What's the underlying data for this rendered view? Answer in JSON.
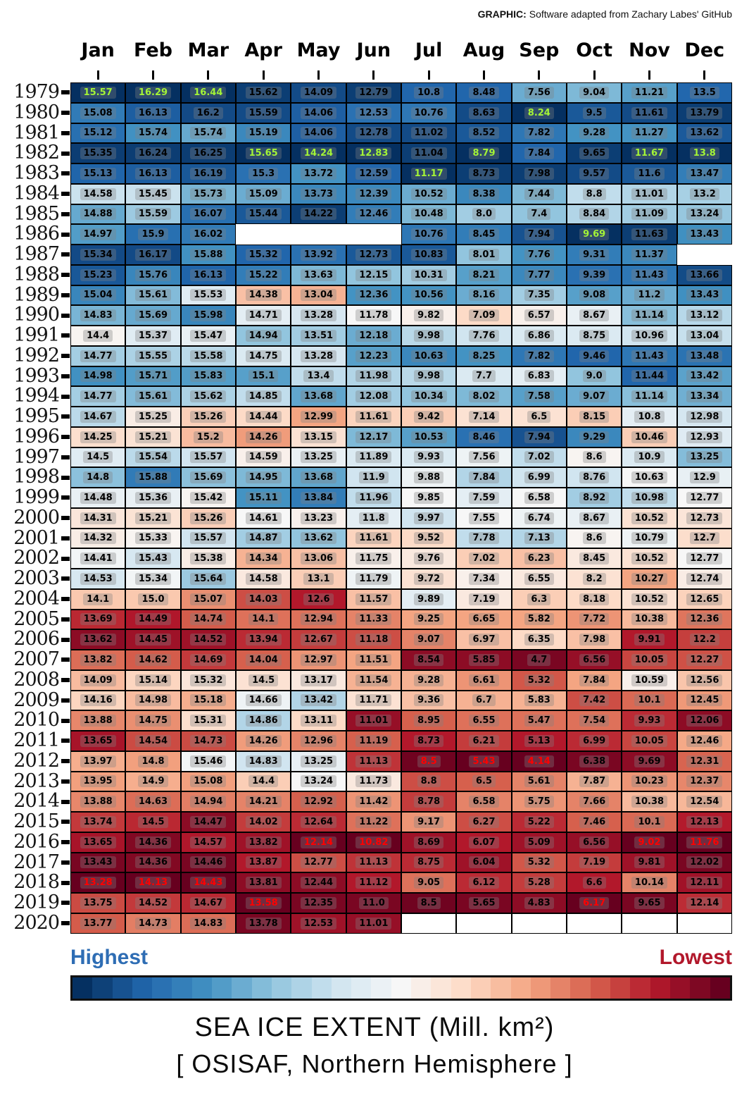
{
  "credit": {
    "prefix": "GRAPHIC:",
    "text": " Software adapted from Zachary Labes' GitHub"
  },
  "legend": {
    "highest_label": "Highest",
    "lowest_label": "Lowest",
    "highest_color": "#2e6db4",
    "lowest_color": "#b2182b",
    "segments": 33
  },
  "title": {
    "line1": "SEA ICE EXTENT (Mill. km²)",
    "line2": "[ OSISAF, Northern Hemisphere ]"
  },
  "chart_data": {
    "type": "heatmap",
    "title": "SEA ICE EXTENT (Mill. km²)",
    "subtitle": "[ OSISAF, Northern Hemisphere ]",
    "unit": "Mill. km²",
    "columns": [
      "Jan",
      "Feb",
      "Mar",
      "Apr",
      "May",
      "Jun",
      "Jul",
      "Aug",
      "Sep",
      "Oct",
      "Nov",
      "Dec"
    ],
    "years": [
      "1979",
      "1980",
      "1981",
      "1982",
      "1983",
      "1984",
      "1985",
      "1986",
      "1987",
      "1988",
      "1989",
      "1990",
      "1991",
      "1992",
      "1993",
      "1994",
      "1995",
      "1996",
      "1997",
      "1998",
      "1999",
      "2000",
      "2001",
      "2002",
      "2003",
      "2004",
      "2005",
      "2006",
      "2007",
      "2008",
      "2009",
      "2010",
      "2011",
      "2012",
      "2013",
      "2014",
      "2015",
      "2016",
      "2017",
      "2018",
      "2019",
      "2020"
    ],
    "values": [
      [
        15.57,
        16.29,
        16.44,
        15.62,
        14.09,
        12.79,
        10.8,
        8.48,
        7.56,
        9.04,
        11.21,
        13.5
      ],
      [
        15.08,
        16.13,
        16.2,
        15.59,
        14.06,
        12.53,
        10.76,
        8.63,
        8.24,
        9.5,
        11.61,
        13.79
      ],
      [
        15.12,
        15.74,
        15.74,
        15.19,
        14.06,
        12.78,
        11.02,
        8.52,
        7.82,
        9.28,
        11.27,
        13.62
      ],
      [
        15.35,
        16.24,
        16.25,
        15.65,
        14.24,
        12.83,
        11.04,
        8.79,
        7.84,
        9.65,
        11.67,
        13.8
      ],
      [
        15.13,
        16.13,
        16.19,
        15.3,
        13.72,
        12.59,
        11.17,
        8.73,
        7.98,
        9.57,
        11.6,
        13.47
      ],
      [
        14.58,
        15.45,
        15.73,
        15.09,
        13.73,
        12.39,
        10.52,
        8.38,
        7.44,
        8.8,
        11.01,
        13.2
      ],
      [
        14.88,
        15.59,
        16.07,
        15.44,
        14.22,
        12.46,
        10.48,
        8.0,
        7.4,
        8.84,
        11.09,
        13.24
      ],
      [
        14.97,
        15.9,
        16.02,
        null,
        null,
        null,
        10.76,
        8.45,
        7.94,
        9.69,
        11.63,
        13.43
      ],
      [
        15.34,
        16.17,
        15.88,
        15.32,
        13.92,
        12.73,
        10.83,
        8.01,
        7.76,
        9.31,
        11.37,
        null
      ],
      [
        15.23,
        15.76,
        16.13,
        15.22,
        13.63,
        12.15,
        10.31,
        8.21,
        7.77,
        9.39,
        11.43,
        13.66
      ],
      [
        15.04,
        15.61,
        15.53,
        14.38,
        13.04,
        12.36,
        10.56,
        8.16,
        7.35,
        9.08,
        11.2,
        13.43
      ],
      [
        14.83,
        15.69,
        15.98,
        14.71,
        13.28,
        11.78,
        9.82,
        7.09,
        6.57,
        8.67,
        11.14,
        13.12
      ],
      [
        14.4,
        15.37,
        15.47,
        14.94,
        13.51,
        12.18,
        9.98,
        7.76,
        6.86,
        8.75,
        10.96,
        13.04
      ],
      [
        14.77,
        15.55,
        15.58,
        14.75,
        13.28,
        12.23,
        10.63,
        8.25,
        7.82,
        9.46,
        11.43,
        13.48
      ],
      [
        14.98,
        15.71,
        15.83,
        15.1,
        13.4,
        11.98,
        9.98,
        7.7,
        6.83,
        9.0,
        11.44,
        13.42
      ],
      [
        14.77,
        15.61,
        15.62,
        14.85,
        13.68,
        12.08,
        10.34,
        8.02,
        7.58,
        9.07,
        11.14,
        13.34
      ],
      [
        14.67,
        15.25,
        15.26,
        14.44,
        12.99,
        11.61,
        9.42,
        7.14,
        6.5,
        8.15,
        10.8,
        12.98
      ],
      [
        14.25,
        15.21,
        15.2,
        14.26,
        13.15,
        12.17,
        10.53,
        8.46,
        7.94,
        9.29,
        10.46,
        12.93
      ],
      [
        14.5,
        15.54,
        15.57,
        14.59,
        13.25,
        11.89,
        9.93,
        7.56,
        7.02,
        8.6,
        10.9,
        13.25
      ],
      [
        14.8,
        15.88,
        15.69,
        14.95,
        13.68,
        11.9,
        9.88,
        7.84,
        6.99,
        8.76,
        10.63,
        12.9
      ],
      [
        14.48,
        15.36,
        15.42,
        15.11,
        13.84,
        11.96,
        9.85,
        7.59,
        6.58,
        8.92,
        10.98,
        12.77
      ],
      [
        14.31,
        15.21,
        15.26,
        14.61,
        13.23,
        11.8,
        9.97,
        7.55,
        6.74,
        8.67,
        10.52,
        12.73
      ],
      [
        14.32,
        15.33,
        15.57,
        14.87,
        13.62,
        11.61,
        9.52,
        7.78,
        7.13,
        8.6,
        10.79,
        12.7
      ],
      [
        14.41,
        15.43,
        15.38,
        14.34,
        13.06,
        11.75,
        9.76,
        7.02,
        6.23,
        8.45,
        10.52,
        12.77
      ],
      [
        14.53,
        15.34,
        15.64,
        14.58,
        13.1,
        11.79,
        9.72,
        7.34,
        6.55,
        8.2,
        10.27,
        12.74
      ],
      [
        14.1,
        15.0,
        15.07,
        14.03,
        12.6,
        11.57,
        9.89,
        7.19,
        6.3,
        8.18,
        10.52,
        12.65
      ],
      [
        13.69,
        14.49,
        14.74,
        14.1,
        12.94,
        11.33,
        9.25,
        6.65,
        5.82,
        7.72,
        10.38,
        12.36
      ],
      [
        13.62,
        14.45,
        14.52,
        13.94,
        12.67,
        11.18,
        9.07,
        6.97,
        6.35,
        7.98,
        9.91,
        12.2
      ],
      [
        13.82,
        14.62,
        14.69,
        14.04,
        12.97,
        11.51,
        8.54,
        5.85,
        4.7,
        6.56,
        10.05,
        12.27
      ],
      [
        14.09,
        15.14,
        15.32,
        14.5,
        13.17,
        11.54,
        9.28,
        6.61,
        5.32,
        7.84,
        10.59,
        12.56
      ],
      [
        14.16,
        14.98,
        15.18,
        14.66,
        13.42,
        11.71,
        9.36,
        6.7,
        5.83,
        7.42,
        10.1,
        12.45
      ],
      [
        13.88,
        14.75,
        15.31,
        14.86,
        13.11,
        11.01,
        8.95,
        6.55,
        5.47,
        7.54,
        9.93,
        12.06
      ],
      [
        13.65,
        14.54,
        14.73,
        14.26,
        12.96,
        11.19,
        8.73,
        6.21,
        5.13,
        6.99,
        10.05,
        12.46
      ],
      [
        13.97,
        14.8,
        15.46,
        14.83,
        13.25,
        11.13,
        8.5,
        5.43,
        4.14,
        6.38,
        9.69,
        12.31
      ],
      [
        13.95,
        14.9,
        15.08,
        14.4,
        13.24,
        11.73,
        8.8,
        6.5,
        5.61,
        7.87,
        10.23,
        12.37
      ],
      [
        13.88,
        14.63,
        14.94,
        14.21,
        12.92,
        11.42,
        8.78,
        6.58,
        5.75,
        7.66,
        10.38,
        12.54
      ],
      [
        13.74,
        14.5,
        14.47,
        14.02,
        12.64,
        11.22,
        9.17,
        6.27,
        5.22,
        7.46,
        10.1,
        12.13
      ],
      [
        13.65,
        14.36,
        14.57,
        13.82,
        12.14,
        10.82,
        8.69,
        6.07,
        5.09,
        6.56,
        9.02,
        11.76
      ],
      [
        13.43,
        14.36,
        14.46,
        13.87,
        12.77,
        11.13,
        8.75,
        6.04,
        5.32,
        7.19,
        9.81,
        12.02
      ],
      [
        13.28,
        14.13,
        14.43,
        13.81,
        12.44,
        11.12,
        9.05,
        6.12,
        5.28,
        6.6,
        10.14,
        12.11
      ],
      [
        13.75,
        14.52,
        14.67,
        13.58,
        12.35,
        11.0,
        8.5,
        5.65,
        4.83,
        6.17,
        9.65,
        12.14
      ],
      [
        13.77,
        14.73,
        14.83,
        13.78,
        12.53,
        11.01,
        null,
        null,
        null,
        null,
        null,
        null
      ]
    ],
    "record_high": {
      "Jan": "1979",
      "Feb": "1979",
      "Mar": "1979",
      "Apr": "1982",
      "May": "1982",
      "Jun": "1982",
      "Jul": "1983",
      "Aug": "1982",
      "Sep": "1980",
      "Oct": "1986",
      "Nov": "1982",
      "Dec": "1982"
    },
    "record_low": {
      "Jan": "2018",
      "Feb": "2018",
      "Mar": "2018",
      "Apr": "2019",
      "May": "2016",
      "Jun": "2016",
      "Jul": "2012",
      "Aug": "2012",
      "Sep": "2012",
      "Oct": "2019",
      "Nov": "2016",
      "Dec": "2016"
    },
    "record_high_text_color": "#a4f436",
    "record_low_text_color": "#ff0000",
    "colormap": {
      "name": "RdBu",
      "anchors": [
        "#67001f",
        "#b2182b",
        "#d6604d",
        "#f4a582",
        "#fddbc7",
        "#f7f7f7",
        "#d1e5f0",
        "#92c5de",
        "#4393c3",
        "#2166ac",
        "#053061"
      ]
    },
    "color_rule": "per-month rank, highest=blue, lowest=red",
    "legend_position": "bottom",
    "grid": true
  }
}
